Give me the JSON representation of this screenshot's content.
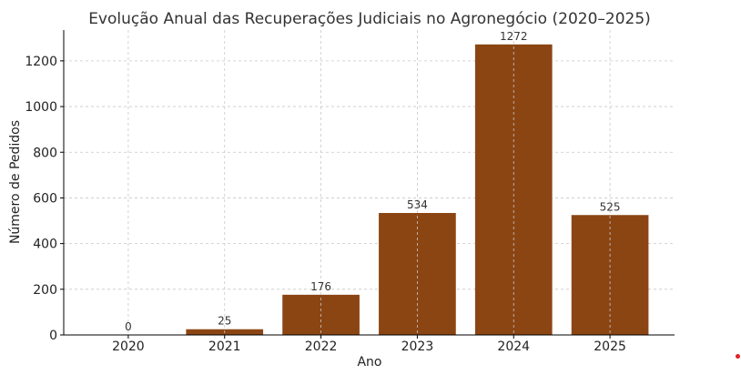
{
  "chart_data": {
    "type": "bar",
    "title": "Evolução Anual das Recuperações Judiciais no Agronegócio (2020–2025)",
    "xlabel": "Ano",
    "ylabel": "Número de Pedidos",
    "categories": [
      "2020",
      "2021",
      "2022",
      "2023",
      "2024",
      "2025"
    ],
    "values": [
      0,
      25,
      176,
      534,
      1272,
      525
    ],
    "data_labels": [
      "0",
      "25",
      "176",
      "534",
      "1272",
      "525"
    ],
    "ylim": [
      0,
      1335
    ],
    "yticks": [
      0,
      200,
      400,
      600,
      800,
      1000,
      1200
    ],
    "ytick_labels": [
      "0",
      "200",
      "400",
      "600",
      "800",
      "1000",
      "1200"
    ],
    "grid": true,
    "bar_color": "#8B4513"
  }
}
